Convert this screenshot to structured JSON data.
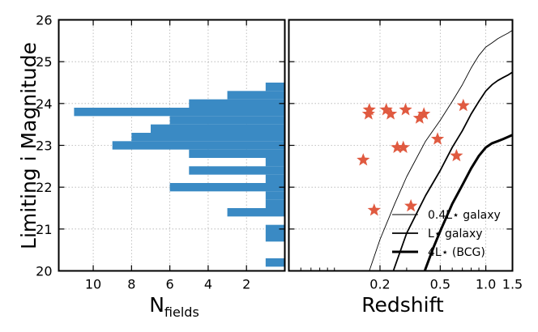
{
  "chart_data": [
    {
      "type": "bar",
      "orientation": "horizontal",
      "xlabel_main": "N",
      "xlabel_sub": "fields",
      "ylabel": "Limiting i Magnitude",
      "xlim": [
        11.8,
        0
      ],
      "ylim": [
        20,
        26
      ],
      "xticks": [
        10,
        8,
        6,
        4,
        2
      ],
      "yticks": [
        20,
        21,
        22,
        23,
        24,
        25,
        26
      ],
      "grid": true,
      "color": "#3a8ac4",
      "bin_width": 0.2,
      "bins": [
        {
          "y": 20.2,
          "n": 1
        },
        {
          "y": 20.8,
          "n": 1
        },
        {
          "y": 21.0,
          "n": 1
        },
        {
          "y": 21.4,
          "n": 3
        },
        {
          "y": 21.6,
          "n": 1
        },
        {
          "y": 21.8,
          "n": 1
        },
        {
          "y": 22.0,
          "n": 6
        },
        {
          "y": 22.2,
          "n": 1
        },
        {
          "y": 22.4,
          "n": 5
        },
        {
          "y": 22.6,
          "n": 1
        },
        {
          "y": 22.8,
          "n": 5
        },
        {
          "y": 23.0,
          "n": 9
        },
        {
          "y": 23.2,
          "n": 8
        },
        {
          "y": 23.4,
          "n": 7
        },
        {
          "y": 23.6,
          "n": 6
        },
        {
          "y": 23.8,
          "n": 11
        },
        {
          "y": 24.0,
          "n": 5
        },
        {
          "y": 24.2,
          "n": 3
        },
        {
          "y": 24.4,
          "n": 1
        }
      ]
    },
    {
      "type": "scatter",
      "xlabel": "Redshift",
      "xlim": [
        0.05,
        1.5
      ],
      "ylim": [
        20,
        26
      ],
      "xticks": [
        0.2,
        0.5,
        1.0,
        1.5
      ],
      "xtick_labels": [
        "0.2",
        "0.5",
        "1.0",
        "1.5"
      ],
      "log_x": true,
      "grid": true,
      "marker": "star",
      "marker_color": "#e05a40",
      "points": [
        {
          "x": 0.17,
          "y": 23.85
        },
        {
          "x": 0.168,
          "y": 23.75
        },
        {
          "x": 0.22,
          "y": 23.85
        },
        {
          "x": 0.235,
          "y": 23.75
        },
        {
          "x": 0.295,
          "y": 23.85
        },
        {
          "x": 0.365,
          "y": 23.65
        },
        {
          "x": 0.39,
          "y": 23.75
        },
        {
          "x": 0.71,
          "y": 23.95
        },
        {
          "x": 0.155,
          "y": 22.65
        },
        {
          "x": 0.26,
          "y": 22.95
        },
        {
          "x": 0.285,
          "y": 22.95
        },
        {
          "x": 0.48,
          "y": 23.15
        },
        {
          "x": 0.64,
          "y": 22.75
        },
        {
          "x": 0.183,
          "y": 21.45
        },
        {
          "x": 0.32,
          "y": 21.55
        }
      ],
      "series": [
        {
          "name": "0.4L⋆ galaxy",
          "line_width": 0.9,
          "x": [
            0.17,
            0.2,
            0.25,
            0.3,
            0.4,
            0.5,
            0.6,
            0.7,
            0.8,
            0.9,
            1.0,
            1.1,
            1.2,
            1.3,
            1.4,
            1.5
          ],
          "y": [
            20.0,
            20.75,
            21.6,
            22.25,
            23.1,
            23.6,
            24.05,
            24.45,
            24.85,
            25.15,
            25.35,
            25.45,
            25.55,
            25.62,
            25.68,
            25.75
          ]
        },
        {
          "name": "L⋆ galaxy",
          "line_width": 1.8,
          "x": [
            0.245,
            0.3,
            0.4,
            0.5,
            0.6,
            0.7,
            0.8,
            0.9,
            1.0,
            1.1,
            1.2,
            1.3,
            1.4,
            1.5
          ],
          "y": [
            20.0,
            20.9,
            21.8,
            22.4,
            22.95,
            23.35,
            23.75,
            24.05,
            24.3,
            24.45,
            24.55,
            24.62,
            24.68,
            24.75
          ]
        },
        {
          "name": "4L⋆ (BCG)",
          "line_width": 3,
          "x": [
            0.395,
            0.45,
            0.5,
            0.6,
            0.7,
            0.8,
            0.9,
            1.0,
            1.1,
            1.2,
            1.3,
            1.4,
            1.5
          ],
          "y": [
            20.0,
            20.55,
            20.95,
            21.6,
            22.05,
            22.45,
            22.75,
            22.95,
            23.05,
            23.1,
            23.15,
            23.2,
            23.25
          ]
        }
      ],
      "legend_position": "bottom-right"
    }
  ]
}
